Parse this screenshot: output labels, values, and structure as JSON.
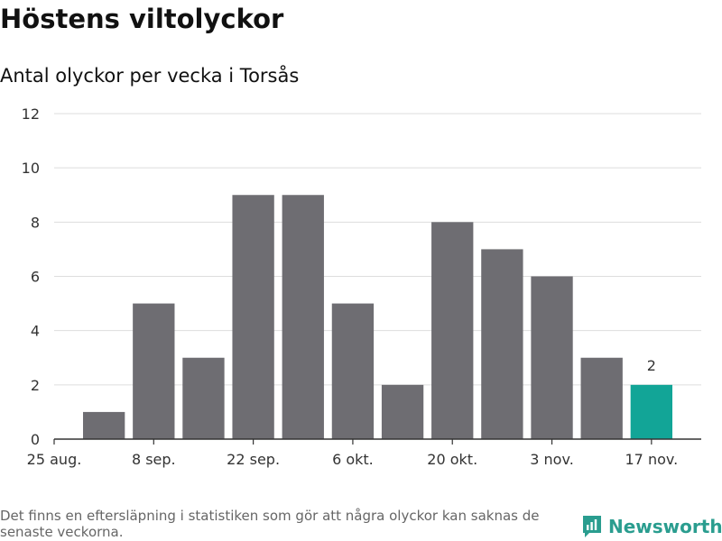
{
  "header": {
    "title": "Höstens viltolyckor",
    "subtitle": "Antal olyckor per vecka i Torsås"
  },
  "footer": {
    "note": "Det finns en eftersläpning i statistiken som gör att några olyckor kan saknas de senaste veckorna.",
    "brand": "Newsworthy",
    "brand_icon": "newsworthy-logo-icon"
  },
  "colors": {
    "bar": "#6e6d72",
    "highlight": "#12a597",
    "grid": "#dddddd",
    "axis": "#333333",
    "text": "#333333",
    "brand": "#2a9d8f"
  },
  "chart_data": {
    "type": "bar",
    "title": "Höstens viltolyckor",
    "subtitle": "Antal olyckor per vecka i Torsås",
    "xlabel": "",
    "ylabel": "",
    "ylim": [
      0,
      12
    ],
    "yticks": [
      0,
      2,
      4,
      6,
      8,
      10,
      12
    ],
    "grid": true,
    "x_tick_labels": [
      "25 aug.",
      "8 sep.",
      "22 sep.",
      "6 okt.",
      "20 okt.",
      "3 nov.",
      "17 nov."
    ],
    "x_tick_positions": [
      0,
      2,
      4,
      6,
      8,
      10,
      12
    ],
    "bars": [
      {
        "week": 1,
        "value": 1
      },
      {
        "week": 2,
        "value": 5
      },
      {
        "week": 3,
        "value": 3
      },
      {
        "week": 4,
        "value": 9
      },
      {
        "week": 5,
        "value": 9
      },
      {
        "week": 6,
        "value": 5
      },
      {
        "week": 7,
        "value": 2
      },
      {
        "week": 8,
        "value": 8
      },
      {
        "week": 9,
        "value": 7
      },
      {
        "week": 10,
        "value": 6
      },
      {
        "week": 11,
        "value": 3
      },
      {
        "week": 12,
        "value": 2,
        "highlight": true,
        "label": "2"
      }
    ]
  }
}
